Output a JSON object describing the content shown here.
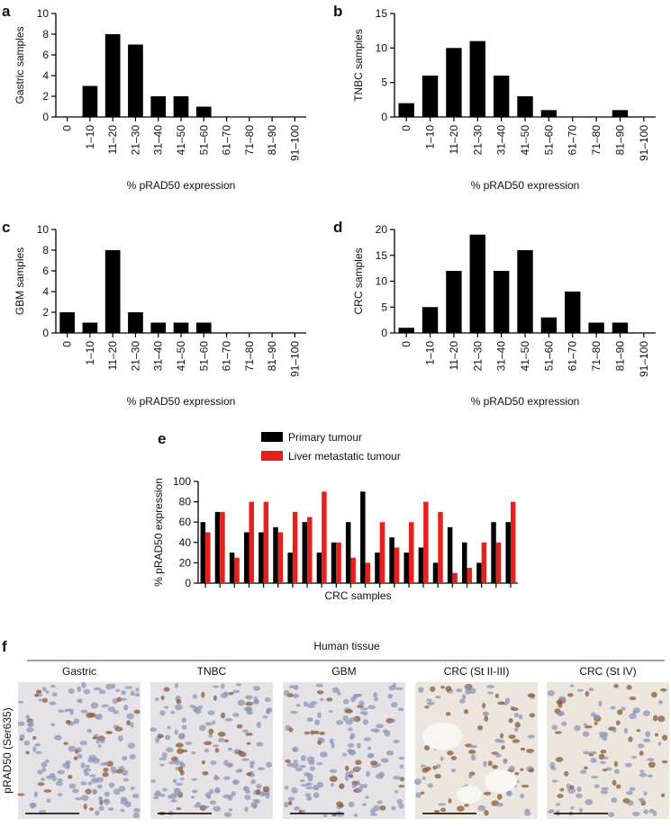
{
  "chart_data": [
    {
      "type": "bar",
      "panel": "a",
      "ylabel": "Gastric samples",
      "xlabel": "% pRAD50 expression",
      "categories": [
        "0",
        "1–10",
        "11–20",
        "21–30",
        "31–40",
        "41–50",
        "51–60",
        "61–70",
        "71–80",
        "81–90",
        "91–100"
      ],
      "values": [
        0,
        3,
        8,
        7,
        2,
        2,
        1,
        0,
        0,
        0,
        0
      ],
      "color": "#000000",
      "ylim": [
        0,
        10
      ],
      "yticks": [
        0,
        2,
        4,
        6,
        8,
        10
      ]
    },
    {
      "type": "bar",
      "panel": "b",
      "ylabel": "TNBC samples",
      "xlabel": "% pRAD50 expression",
      "categories": [
        "0",
        "1–10",
        "11–20",
        "21–30",
        "31–40",
        "41–50",
        "51–60",
        "61–70",
        "71–80",
        "81–90",
        "91–100"
      ],
      "values": [
        2,
        6,
        10,
        11,
        6,
        3,
        1,
        0,
        0,
        1,
        0
      ],
      "color": "#000000",
      "ylim": [
        0,
        15
      ],
      "yticks": [
        0,
        5,
        10,
        15
      ]
    },
    {
      "type": "bar",
      "panel": "c",
      "ylabel": "GBM samples",
      "xlabel": "% pRAD50 expression",
      "categories": [
        "0",
        "1–10",
        "11–20",
        "21–30",
        "31–40",
        "41–50",
        "51–60",
        "61–70",
        "71–80",
        "81–90",
        "91–100"
      ],
      "values": [
        2,
        1,
        8,
        2,
        1,
        1,
        1,
        0,
        0,
        0,
        0
      ],
      "color": "#000000",
      "ylim": [
        0,
        10
      ],
      "yticks": [
        0,
        2,
        4,
        6,
        8,
        10
      ]
    },
    {
      "type": "bar",
      "panel": "d",
      "ylabel": "CRC samples",
      "xlabel": "% pRAD50 expression",
      "categories": [
        "0",
        "1–10",
        "11–20",
        "21–30",
        "31–40",
        "41–50",
        "51–60",
        "61–70",
        "71–80",
        "81–90",
        "91–100"
      ],
      "values": [
        1,
        5,
        12,
        19,
        12,
        16,
        3,
        8,
        2,
        2,
        0
      ],
      "color": "#000000",
      "ylim": [
        0,
        20
      ],
      "yticks": [
        0,
        5,
        10,
        15,
        20
      ]
    },
    {
      "type": "bar",
      "panel": "e",
      "ylabel": "% pRAD50 expression",
      "xlabel": "CRC samples",
      "categories": [
        null,
        null,
        null,
        null,
        null,
        null,
        null,
        null,
        null,
        null,
        null,
        null,
        null,
        null,
        null,
        null,
        null,
        null,
        null,
        null,
        null,
        null
      ],
      "series": [
        {
          "name": "Primary tumour",
          "color": "#000000",
          "values": [
            60,
            70,
            30,
            50,
            50,
            55,
            30,
            60,
            30,
            40,
            60,
            90,
            30,
            45,
            30,
            35,
            20,
            55,
            40,
            20,
            60,
            60
          ]
        },
        {
          "name": "Liver metastatic tumour",
          "color": "#e8201c",
          "values": [
            50,
            70,
            25,
            80,
            80,
            50,
            70,
            65,
            90,
            40,
            25,
            20,
            60,
            35,
            60,
            80,
            70,
            10,
            15,
            40,
            40,
            80
          ]
        }
      ],
      "ylim": [
        0,
        100
      ],
      "yticks": [
        0,
        20,
        40,
        60,
        80,
        100
      ]
    }
  ],
  "panel_f": {
    "panel": "f",
    "title": "Human tissue",
    "ylabel": "pRAD50 (Ser635)",
    "images": [
      "Gastric",
      "TNBC",
      "GBM",
      "CRC (St II-III)",
      "CRC (St IV)"
    ]
  }
}
